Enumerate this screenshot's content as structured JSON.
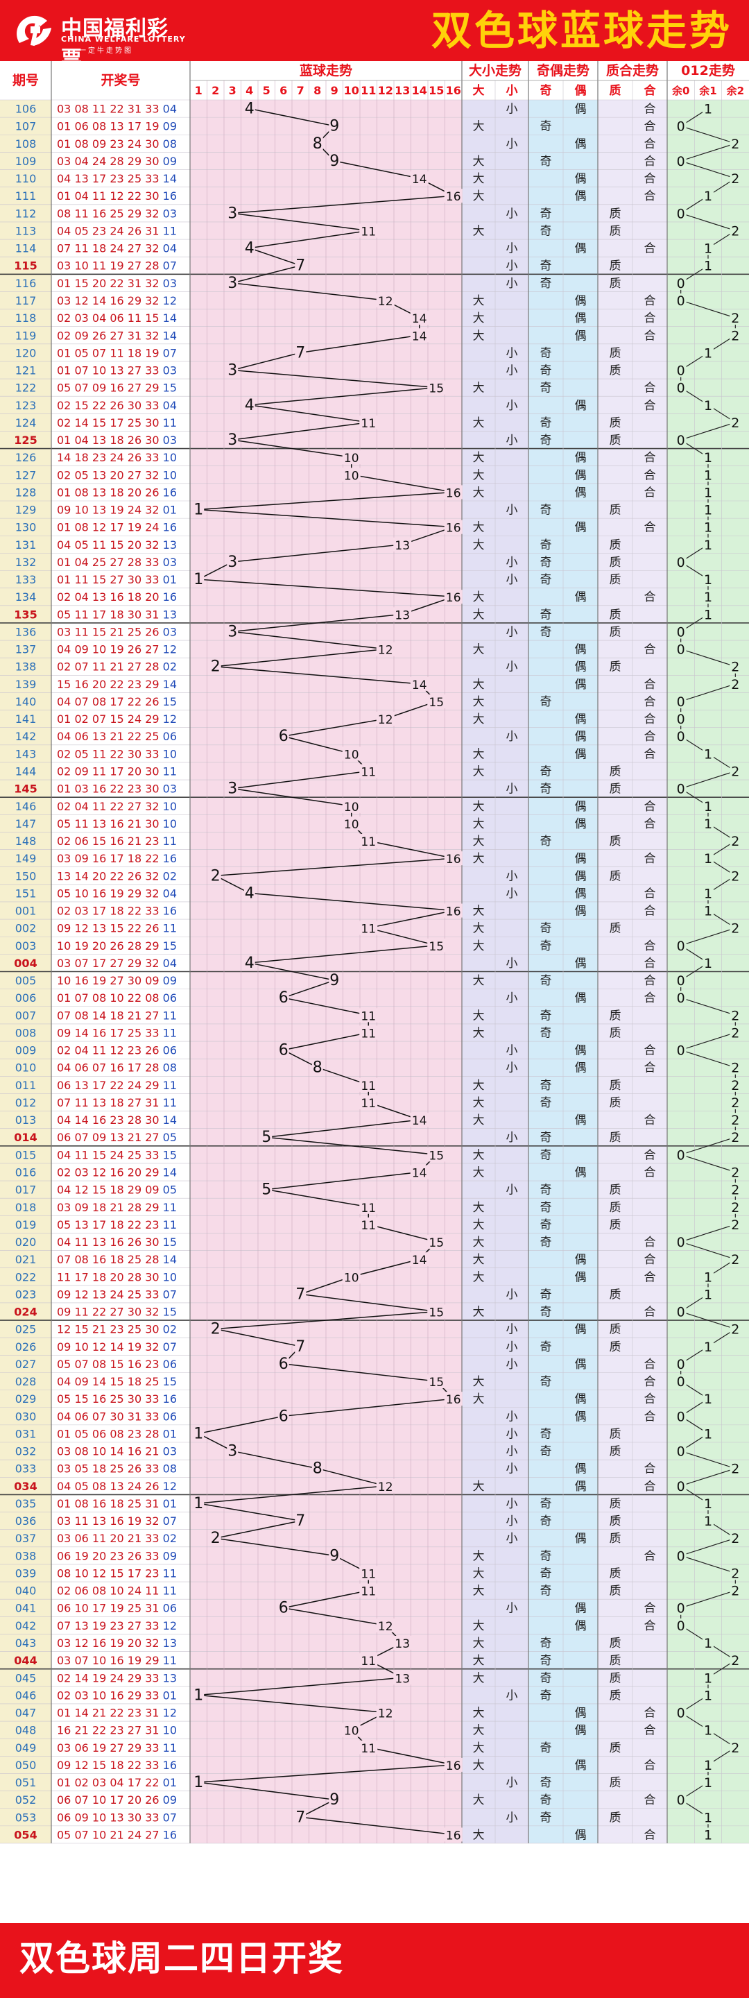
{
  "header": {
    "logo_cn": "中国福利彩票",
    "logo_en": "CHINA WELFARE LOTTERY",
    "logo_sub": "一定牛走势图",
    "title": "双色球蓝球走势"
  },
  "footer": {
    "text": "双色球周二四日开奖"
  },
  "columns": {
    "issue": "期号",
    "numbers": "开奖号",
    "blue_trend": "蓝球走势",
    "size_trend": "大小走势",
    "parity_trend": "奇偶走势",
    "prime_trend": "质合走势",
    "mod_trend": "012走势"
  },
  "sub_headers": {
    "blue": [
      "1",
      "2",
      "3",
      "4",
      "5",
      "6",
      "7",
      "8",
      "9",
      "10",
      "11",
      "12",
      "13",
      "14",
      "15",
      "16"
    ],
    "size": [
      "大",
      "小"
    ],
    "parity": [
      "奇",
      "偶"
    ],
    "prime": [
      "质",
      "合"
    ],
    "mod": [
      "余0",
      "余1",
      "余2"
    ]
  },
  "labels": {
    "big": "大",
    "small": "小",
    "odd": "奇",
    "even": "偶",
    "prime": "质",
    "composite": "合"
  },
  "colors": {
    "header_red": "#e8121b",
    "title_yellow": "#ffd20a",
    "issue_bg": "#f6f0cf",
    "blue_area_bg": "#f7dbe8",
    "size_bg": "#e2e0f4",
    "parity_bg": "#d3ebf8",
    "prime_bg": "#ede8f7",
    "mod_bg": "#d8f2d8",
    "issue_text": "#2a6fb8",
    "red_text": "#c8121b",
    "blue_text": "#1f4ab8",
    "header_text": "#e8121b"
  },
  "chart_data": {
    "type": "line",
    "title": "双色球蓝球走势",
    "y_axis": "期号",
    "x_range": [
      1,
      16
    ],
    "draws": [
      {
        "issue": "106",
        "reds": "03 08 11 22 31 33",
        "blue": 4
      },
      {
        "issue": "107",
        "reds": "01 06 08 13 17 19",
        "blue": 9
      },
      {
        "issue": "108",
        "reds": "01 08 09 23 24 30",
        "blue": 8
      },
      {
        "issue": "109",
        "reds": "03 04 24 28 29 30",
        "blue": 9
      },
      {
        "issue": "110",
        "reds": "04 13 17 23 25 33",
        "blue": 14
      },
      {
        "issue": "111",
        "reds": "01 04 11 12 22 30",
        "blue": 16
      },
      {
        "issue": "112",
        "reds": "08 11 16 25 29 32",
        "blue": 3
      },
      {
        "issue": "113",
        "reds": "04 05 23 24 26 31",
        "blue": 11
      },
      {
        "issue": "114",
        "reds": "07 11 18 24 27 32",
        "blue": 4
      },
      {
        "issue": "115",
        "reds": "03 10 11 19 27 28",
        "blue": 7
      },
      {
        "issue": "116",
        "reds": "01 15 20 22 31 32",
        "blue": 3
      },
      {
        "issue": "117",
        "reds": "03 12 14 16 29 32",
        "blue": 12
      },
      {
        "issue": "118",
        "reds": "02 03 04 06 11 15",
        "blue": 14
      },
      {
        "issue": "119",
        "reds": "02 09 26 27 31 32",
        "blue": 14
      },
      {
        "issue": "120",
        "reds": "01 05 07 11 18 19",
        "blue": 7
      },
      {
        "issue": "121",
        "reds": "01 07 10 13 27 33",
        "blue": 3
      },
      {
        "issue": "122",
        "reds": "05 07 09 16 27 29",
        "blue": 15
      },
      {
        "issue": "123",
        "reds": "02 15 22 26 30 33",
        "blue": 4
      },
      {
        "issue": "124",
        "reds": "02 14 15 17 25 30",
        "blue": 11
      },
      {
        "issue": "125",
        "reds": "01 04 13 18 26 30",
        "blue": 3
      },
      {
        "issue": "126",
        "reds": "14 18 23 24 26 33",
        "blue": 10
      },
      {
        "issue": "127",
        "reds": "02 05 13 20 27 32",
        "blue": 10
      },
      {
        "issue": "128",
        "reds": "01 08 13 18 20 26",
        "blue": 16
      },
      {
        "issue": "129",
        "reds": "09 10 13 19 24 32",
        "blue": 1
      },
      {
        "issue": "130",
        "reds": "01 08 12 17 19 24",
        "blue": 16
      },
      {
        "issue": "131",
        "reds": "04 05 11 15 20 32",
        "blue": 13
      },
      {
        "issue": "132",
        "reds": "01 04 25 27 28 33",
        "blue": 3
      },
      {
        "issue": "133",
        "reds": "01 11 15 27 30 33",
        "blue": 1
      },
      {
        "issue": "134",
        "reds": "02 04 13 16 18 20",
        "blue": 16
      },
      {
        "issue": "135",
        "reds": "05 11 17 18 30 31",
        "blue": 13
      },
      {
        "issue": "136",
        "reds": "03 11 15 21 25 26",
        "blue": 3
      },
      {
        "issue": "137",
        "reds": "04 09 10 19 26 27",
        "blue": 12
      },
      {
        "issue": "138",
        "reds": "02 07 11 21 27 28",
        "blue": 2
      },
      {
        "issue": "139",
        "reds": "15 16 20 22 23 29",
        "blue": 14
      },
      {
        "issue": "140",
        "reds": "04 07 08 17 22 26",
        "blue": 15
      },
      {
        "issue": "141",
        "reds": "01 02 07 15 24 29",
        "blue": 12
      },
      {
        "issue": "142",
        "reds": "04 06 13 21 22 25",
        "blue": 6
      },
      {
        "issue": "143",
        "reds": "02 05 11 22 30 33",
        "blue": 10
      },
      {
        "issue": "144",
        "reds": "02 09 11 17 20 30",
        "blue": 11
      },
      {
        "issue": "145",
        "reds": "01 03 16 22 23 30",
        "blue": 3
      },
      {
        "issue": "146",
        "reds": "02 04 11 22 27 32",
        "blue": 10
      },
      {
        "issue": "147",
        "reds": "05 11 13 16 21 30",
        "blue": 10
      },
      {
        "issue": "148",
        "reds": "02 06 15 16 21 23",
        "blue": 11
      },
      {
        "issue": "149",
        "reds": "03 09 16 17 18 22",
        "blue": 16
      },
      {
        "issue": "150",
        "reds": "13 14 20 22 26 32",
        "blue": 2
      },
      {
        "issue": "151",
        "reds": "05 10 16 19 29 32",
        "blue": 4
      },
      {
        "issue": "001",
        "reds": "02 03 17 18 22 33",
        "blue": 16
      },
      {
        "issue": "002",
        "reds": "09 12 13 15 22 26",
        "blue": 11
      },
      {
        "issue": "003",
        "reds": "10 19 20 26 28 29",
        "blue": 15
      },
      {
        "issue": "004",
        "reds": "03 07 17 27 29 32",
        "blue": 4
      },
      {
        "issue": "005",
        "reds": "10 16 19 27 30 09",
        "blue": 9
      },
      {
        "issue": "006",
        "reds": "01 07 08 10 22 08",
        "blue": 6
      },
      {
        "issue": "007",
        "reds": "07 08 14 18 21 27",
        "blue": 11
      },
      {
        "issue": "008",
        "reds": "09 14 16 17 25 33",
        "blue": 11
      },
      {
        "issue": "009",
        "reds": "02 04 11 12 23 26",
        "blue": 6
      },
      {
        "issue": "010",
        "reds": "04 06 07 16 17 28",
        "blue": 8
      },
      {
        "issue": "011",
        "reds": "06 13 17 22 24 29",
        "blue": 11
      },
      {
        "issue": "012",
        "reds": "07 11 13 18 27 31",
        "blue": 11
      },
      {
        "issue": "013",
        "reds": "04 14 16 23 28 30",
        "blue": 14
      },
      {
        "issue": "014",
        "reds": "06 07 09 13 21 27",
        "blue": 5
      },
      {
        "issue": "015",
        "reds": "04 11 15 24 25 33",
        "blue": 15
      },
      {
        "issue": "016",
        "reds": "02 03 12 16 20 29",
        "blue": 14
      },
      {
        "issue": "017",
        "reds": "04 12 15 18 29 09",
        "blue": 5
      },
      {
        "issue": "018",
        "reds": "03 09 18 21 28 29",
        "blue": 11
      },
      {
        "issue": "019",
        "reds": "05 13 17 18 22 23",
        "blue": 11
      },
      {
        "issue": "020",
        "reds": "04 11 13 16 26 30",
        "blue": 15
      },
      {
        "issue": "021",
        "reds": "07 08 16 18 25 28",
        "blue": 14
      },
      {
        "issue": "022",
        "reds": "11 17 18 20 28 30",
        "blue": 10
      },
      {
        "issue": "023",
        "reds": "09 12 13 24 25 33",
        "blue": 7
      },
      {
        "issue": "024",
        "reds": "09 11 22 27 30 32",
        "blue": 15
      },
      {
        "issue": "025",
        "reds": "12 15 21 23 25 30",
        "blue": 2
      },
      {
        "issue": "026",
        "reds": "09 10 12 14 19 32",
        "blue": 7
      },
      {
        "issue": "027",
        "reds": "05 07 08 15 16 23",
        "blue": 6
      },
      {
        "issue": "028",
        "reds": "04 09 14 15 18 25",
        "blue": 15
      },
      {
        "issue": "029",
        "reds": "05 15 16 25 30 33",
        "blue": 16
      },
      {
        "issue": "030",
        "reds": "04 06 07 30 31 33",
        "blue": 6
      },
      {
        "issue": "031",
        "reds": "01 05 06 08 23 28",
        "blue": 1
      },
      {
        "issue": "032",
        "reds": "03 08 10 14 16 21",
        "blue": 3
      },
      {
        "issue": "033",
        "reds": "03 05 18 25 26 33",
        "blue": 8
      },
      {
        "issue": "034",
        "reds": "04 05 08 13 24 26",
        "blue": 12
      },
      {
        "issue": "035",
        "reds": "01 08 16 18 25 31",
        "blue": 1
      },
      {
        "issue": "036",
        "reds": "03 11 13 16 19 32",
        "blue": 7
      },
      {
        "issue": "037",
        "reds": "03 06 11 20 21 33",
        "blue": 2
      },
      {
        "issue": "038",
        "reds": "06 19 20 23 26 33",
        "blue": 9
      },
      {
        "issue": "039",
        "reds": "08 10 12 15 17 23",
        "blue": 11
      },
      {
        "issue": "040",
        "reds": "02 06 08 10 24 11",
        "blue": 11
      },
      {
        "issue": "041",
        "reds": "06 10 17 19 25 31",
        "blue": 6
      },
      {
        "issue": "042",
        "reds": "07 13 19 23 27 33",
        "blue": 12
      },
      {
        "issue": "043",
        "reds": "03 12 16 19 20 32",
        "blue": 13
      },
      {
        "issue": "044",
        "reds": "03 07 10 16 19 29",
        "blue": 11
      },
      {
        "issue": "045",
        "reds": "02 14 19 24 29 33",
        "blue": 13
      },
      {
        "issue": "046",
        "reds": "02 03 10 16 29 33",
        "blue": 1
      },
      {
        "issue": "047",
        "reds": "01 14 21 22 23 31",
        "blue": 12
      },
      {
        "issue": "048",
        "reds": "16 21 22 23 27 31",
        "blue": 10
      },
      {
        "issue": "049",
        "reds": "03 06 19 27 29 33",
        "blue": 11
      },
      {
        "issue": "050",
        "reds": "09 12 15 18 22 33",
        "blue": 16
      },
      {
        "issue": "051",
        "reds": "01 02 03 04 17 22",
        "blue": 1
      },
      {
        "issue": "052",
        "reds": "06 07 10 17 20 26",
        "blue": 9
      },
      {
        "issue": "053",
        "reds": "06 09 10 13 30 33",
        "blue": 7
      },
      {
        "issue": "054",
        "reds": "05 07 10 21 24 27",
        "blue": 16
      }
    ]
  }
}
